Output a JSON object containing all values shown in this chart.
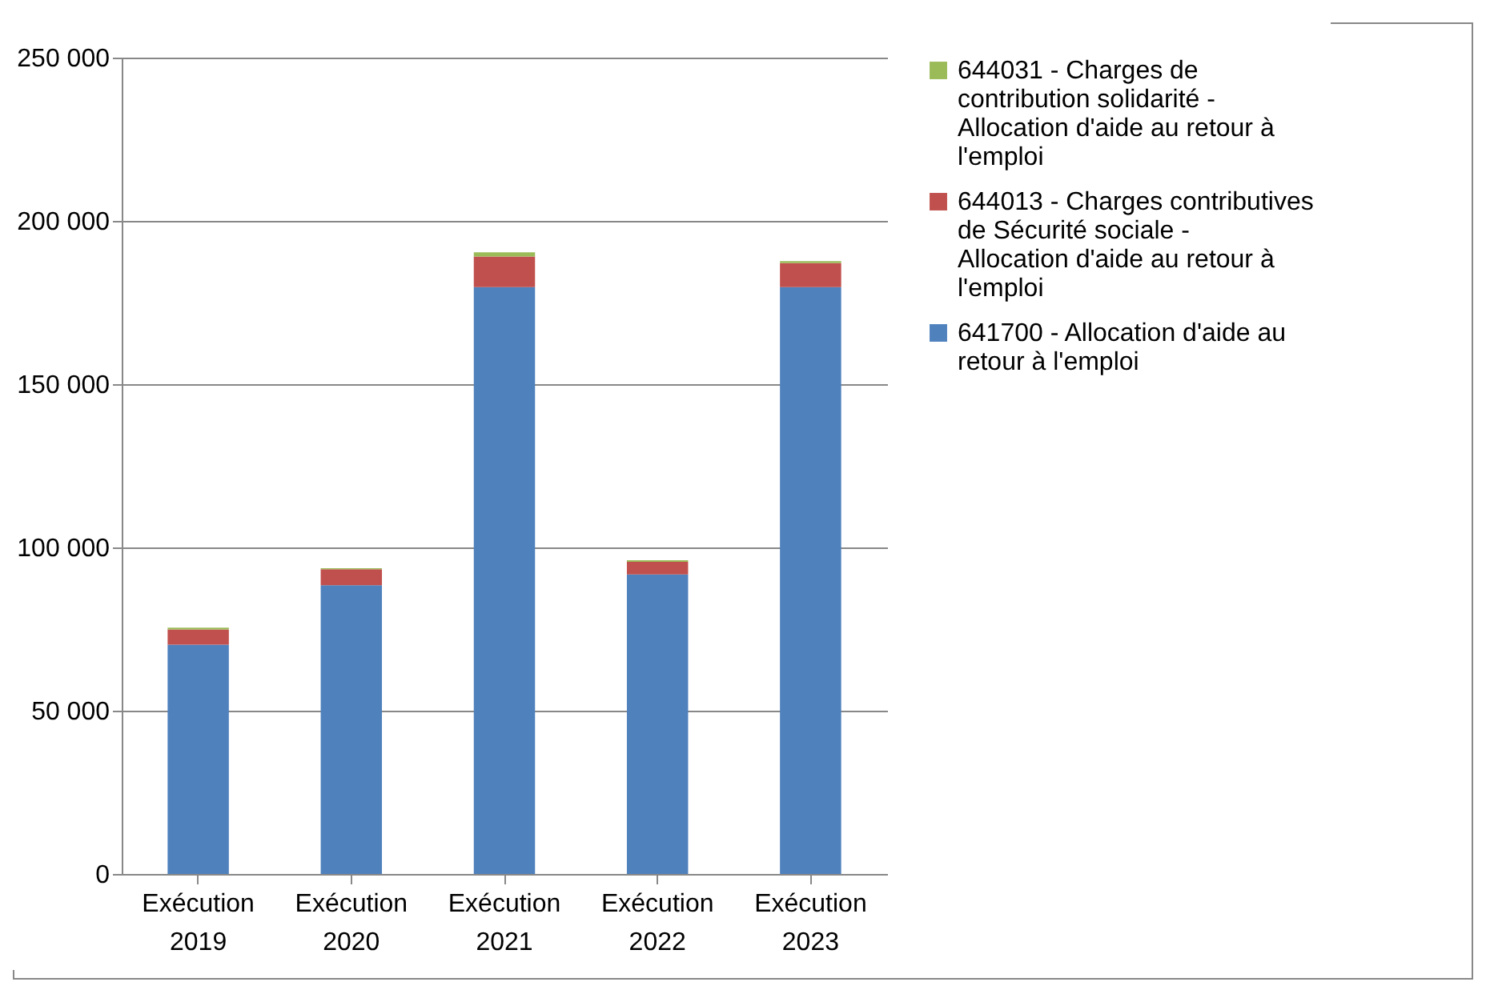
{
  "chart_data": {
    "type": "bar",
    "stacked": true,
    "categories": [
      "Exécution 2019",
      "Exécution 2020",
      "Exécution 2021",
      "Exécution 2022",
      "Exécution 2023"
    ],
    "series": [
      {
        "name": "641700 - Allocation d'aide au retour à l'emploi",
        "color": "#4f81bd",
        "values": [
          70200,
          88400,
          179700,
          91700,
          179700
        ]
      },
      {
        "name": "644013 - Charges contributives de Sécurité sociale - Allocation d'aide au retour à l'emploi",
        "color": "#c0504d",
        "values": [
          4700,
          4900,
          9400,
          3900,
          7400
        ]
      },
      {
        "name": "644031 - Charges de contribution solidarité - Allocation d'aide au retour à l'emploi",
        "color": "#9bbb59",
        "values": [
          500,
          300,
          1300,
          500,
          600
        ]
      }
    ],
    "ylim": [
      0,
      250000
    ],
    "yticks": [
      {
        "value": 0,
        "label": "0"
      },
      {
        "value": 50000,
        "label": "50 000"
      },
      {
        "value": 100000,
        "label": "100 000"
      },
      {
        "value": 150000,
        "label": "150 000"
      },
      {
        "value": 200000,
        "label": "200 000"
      },
      {
        "value": 250000,
        "label": "250 000"
      }
    ],
    "grid": "y",
    "legend": "right"
  }
}
